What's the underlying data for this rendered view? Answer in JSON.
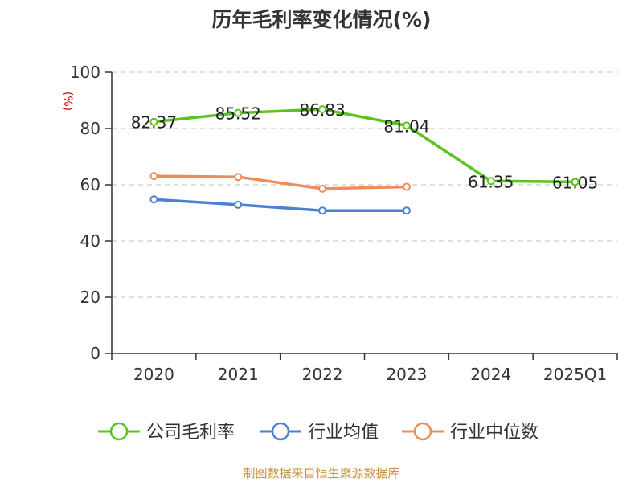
{
  "chart_data": {
    "type": "line",
    "title": "历年毛利率变化情况(%)",
    "unit_label": "(%)",
    "categories": [
      "2020",
      "2021",
      "2022",
      "2023",
      "2024",
      "2025Q1"
    ],
    "ylim": [
      0,
      100
    ],
    "yticks": [
      0,
      20,
      40,
      60,
      80,
      100
    ],
    "grid": true,
    "legend_position": "bottom",
    "series": [
      {
        "name": "公司毛利率",
        "color": "#5cc41e",
        "values": [
          82.37,
          85.52,
          86.83,
          81.04,
          61.35,
          61.05
        ],
        "labels": [
          "82.37",
          "85.52",
          "86.83",
          "81.04",
          "61.35",
          "61.05"
        ]
      },
      {
        "name": "行业均值",
        "color": "#4e7fd6",
        "values": [
          54.8,
          52.9,
          50.8,
          50.8,
          null,
          null
        ]
      },
      {
        "name": "行业中位数",
        "color": "#f08c5a",
        "values": [
          63.1,
          62.8,
          58.6,
          59.3,
          null,
          null
        ]
      }
    ]
  },
  "source_note": "制图数据来自恒生聚源数据库"
}
